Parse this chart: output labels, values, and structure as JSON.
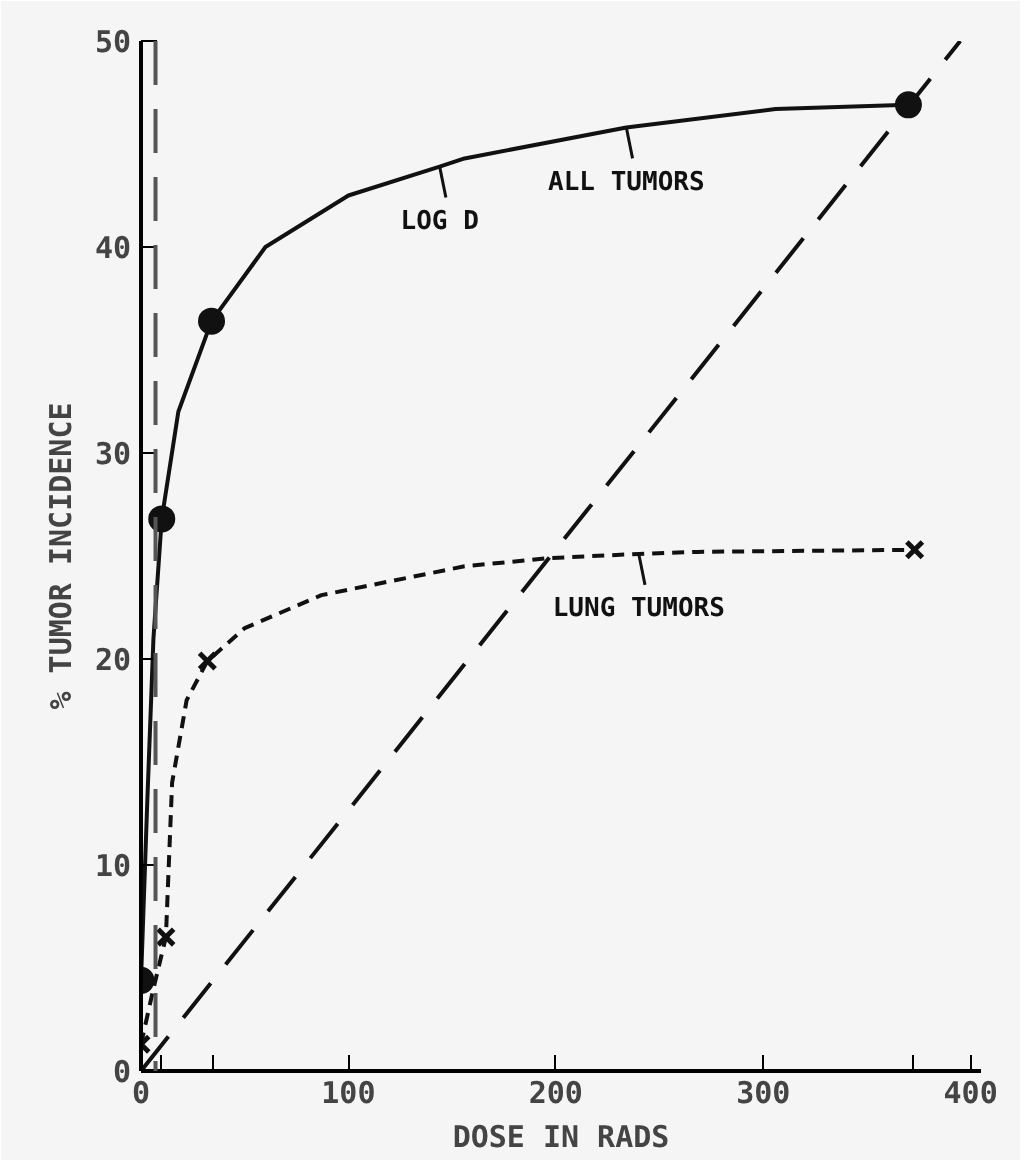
{
  "chart_data": {
    "type": "line",
    "xlabel": "DOSE IN RADS",
    "ylabel": "% TUMOR INCIDENCE",
    "xlim": [
      0,
      405
    ],
    "ylim": [
      0,
      50
    ],
    "xticks": [
      0,
      {
        "value": 10,
        "label": null
      },
      {
        "value": 35,
        "label": null
      },
      100,
      200,
      300,
      {
        "value": 372,
        "label": null
      },
      400
    ],
    "yticks": [
      0,
      10,
      20,
      30,
      40,
      50
    ],
    "grid": false,
    "series": [
      {
        "type": "scatter",
        "color": "#111111",
        "marker": "circle",
        "x": [
          0,
          10,
          34,
          370
        ],
        "values": [
          4.4,
          26.8,
          36.4,
          46.9
        ]
      },
      {
        "color": "#111111",
        "marker": "none",
        "line_style": "solid",
        "x": [
          0,
          3,
          6,
          10,
          18,
          34,
          60,
          100,
          144,
          156,
          234,
          306,
          370
        ],
        "values": [
          4.4,
          13,
          21,
          26.8,
          32,
          36.4,
          40,
          42.5,
          43.9,
          44.3,
          45.8,
          46.7,
          46.9
        ]
      },
      {
        "type": "scatter",
        "color": "#111111",
        "marker": "cross",
        "x": [
          0,
          12,
          32,
          373
        ],
        "values": [
          1.3,
          6.5,
          19.9,
          25.3
        ]
      },
      {
        "color": "#111111",
        "marker": "none",
        "line_style": "dashed",
        "x": [
          0,
          6,
          12,
          15,
          22,
          32,
          50,
          87,
          156,
          197,
          240,
          268,
          373
        ],
        "values": [
          1.3,
          4,
          6.5,
          14,
          18,
          19.9,
          21.5,
          23.1,
          24.5,
          24.9,
          25.1,
          25.2,
          25.3
        ]
      },
      {
        "color": "#111111",
        "marker": "none",
        "line_style": "longdash",
        "x": [
          0,
          395
        ],
        "values": [
          0,
          50
        ]
      }
    ],
    "ref_lines": [
      {
        "axis": "x",
        "value": 7,
        "line_style": "longdash",
        "color": "#555555"
      }
    ],
    "annotations": [
      {
        "text": "LOG D",
        "x": 144,
        "y": 43.9
      },
      {
        "text": "ALL TUMORS",
        "x": 234,
        "y": 45.8
      },
      {
        "text": "LUNG TUMORS",
        "x": 240,
        "y": 25.1
      }
    ]
  }
}
